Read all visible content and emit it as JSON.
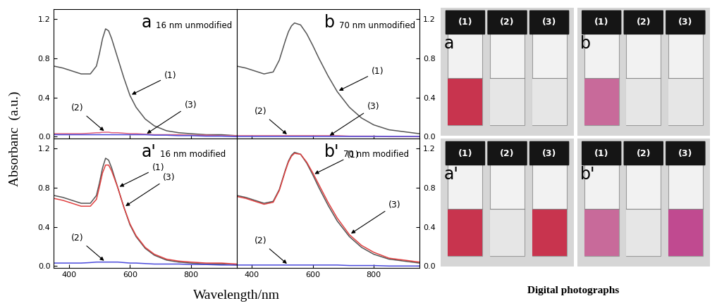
{
  "chart_data": [
    {
      "type": "line",
      "title": "a",
      "subtitle": "16 nm unmodified",
      "xlim": [
        350,
        950
      ],
      "xticks": [
        400,
        600,
        800
      ],
      "ylim": [
        -0.02,
        1.3
      ],
      "yticks": [
        {
          "value": 0.0,
          "label": "0.0"
        },
        {
          "value": 0.4,
          "label": "0.4"
        },
        {
          "value": 0.8,
          "label": "0.8"
        },
        {
          "value": 1.2,
          "label": "1.2"
        }
      ],
      "x": [
        350,
        380,
        410,
        440,
        470,
        490,
        500,
        510,
        520,
        530,
        540,
        560,
        580,
        600,
        620,
        650,
        680,
        720,
        760,
        800,
        850,
        900,
        950
      ],
      "series": [
        {
          "name": "(1)",
          "color": "#555555",
          "label_x": 600,
          "values": [
            0.72,
            0.7,
            0.67,
            0.64,
            0.64,
            0.72,
            0.85,
            1.0,
            1.1,
            1.08,
            1.0,
            0.8,
            0.6,
            0.42,
            0.3,
            0.18,
            0.11,
            0.06,
            0.04,
            0.03,
            0.02,
            0.02,
            0.01
          ]
        },
        {
          "name": "(2)",
          "color": "#e0607a",
          "label_x": 520,
          "values": [
            0.03,
            0.03,
            0.03,
            0.03,
            0.035,
            0.04,
            0.04,
            0.045,
            0.045,
            0.045,
            0.04,
            0.04,
            0.035,
            0.03,
            0.03,
            0.025,
            0.02,
            0.02,
            0.02,
            0.015,
            0.015,
            0.01,
            0.01
          ]
        },
        {
          "name": "(3)",
          "color": "#4a4adc",
          "label_x": 650,
          "values": [
            0.02,
            0.02,
            0.02,
            0.02,
            0.02,
            0.02,
            0.02,
            0.02,
            0.02,
            0.02,
            0.02,
            0.02,
            0.02,
            0.02,
            0.02,
            0.02,
            0.015,
            0.015,
            0.01,
            0.01,
            0.005,
            0.005,
            0.0
          ]
        }
      ]
    },
    {
      "type": "line",
      "title": "b",
      "subtitle": "70 nm unmodified",
      "xlim": [
        350,
        950
      ],
      "xticks": [
        400,
        600,
        800
      ],
      "ylim": [
        -0.02,
        1.3
      ],
      "yticks": [
        {
          "value": 0.0,
          "label": "0.0"
        },
        {
          "value": 0.4,
          "label": "0.4"
        },
        {
          "value": 0.8,
          "label": "0.8"
        },
        {
          "value": 1.2,
          "label": "1.2"
        }
      ],
      "x": [
        350,
        380,
        410,
        440,
        470,
        490,
        500,
        510,
        520,
        530,
        540,
        560,
        580,
        600,
        620,
        650,
        680,
        720,
        760,
        800,
        850,
        900,
        950
      ],
      "series": [
        {
          "name": "(1)",
          "color": "#555555",
          "label_x": 680,
          "values": [
            0.72,
            0.7,
            0.67,
            0.64,
            0.66,
            0.78,
            0.88,
            0.98,
            1.07,
            1.13,
            1.16,
            1.14,
            1.05,
            0.93,
            0.8,
            0.62,
            0.46,
            0.3,
            0.19,
            0.12,
            0.07,
            0.05,
            0.03
          ]
        },
        {
          "name": "(2)",
          "color": "#e0607a",
          "label_x": 520,
          "values": [
            0.01,
            0.01,
            0.01,
            0.01,
            0.01,
            0.01,
            0.01,
            0.01,
            0.01,
            0.01,
            0.01,
            0.01,
            0.01,
            0.01,
            0.01,
            0.01,
            0.01,
            0.005,
            0.005,
            0.005,
            0.0,
            0.0,
            0.0
          ]
        },
        {
          "name": "(3)",
          "color": "#4a4adc",
          "label_x": 650,
          "values": [
            0.0,
            0.0,
            0.0,
            0.0,
            0.0,
            0.0,
            0.0,
            0.0,
            0.0,
            0.0,
            0.0,
            0.0,
            0.0,
            0.0,
            0.0,
            0.0,
            0.0,
            0.0,
            0.0,
            0.0,
            0.0,
            0.0,
            0.0
          ]
        }
      ]
    },
    {
      "type": "line",
      "title": "a'",
      "subtitle": "16 nm modified",
      "xlim": [
        350,
        950
      ],
      "xticks": [
        400,
        600,
        800
      ],
      "ylim": [
        -0.02,
        1.3
      ],
      "yticks": [
        {
          "value": 0.0,
          "label": "0.0"
        },
        {
          "value": 0.4,
          "label": "0.4"
        },
        {
          "value": 0.8,
          "label": "0.8"
        },
        {
          "value": 1.2,
          "label": "1.2"
        }
      ],
      "x": [
        350,
        380,
        410,
        440,
        470,
        490,
        500,
        510,
        520,
        530,
        540,
        560,
        580,
        600,
        620,
        650,
        680,
        720,
        760,
        800,
        850,
        900,
        950
      ],
      "series": [
        {
          "name": "(1)",
          "color": "#555555",
          "label_x": 560,
          "values": [
            0.72,
            0.7,
            0.67,
            0.64,
            0.64,
            0.72,
            0.85,
            1.0,
            1.1,
            1.08,
            1.0,
            0.8,
            0.6,
            0.42,
            0.3,
            0.18,
            0.11,
            0.06,
            0.04,
            0.03,
            0.02,
            0.02,
            0.01
          ]
        },
        {
          "name": "(2)",
          "color": "#4a4adc",
          "label_x": 520,
          "values": [
            0.03,
            0.03,
            0.03,
            0.03,
            0.035,
            0.04,
            0.04,
            0.04,
            0.04,
            0.04,
            0.04,
            0.04,
            0.035,
            0.03,
            0.03,
            0.025,
            0.02,
            0.02,
            0.02,
            0.015,
            0.015,
            0.01,
            0.01
          ]
        },
        {
          "name": "(3)",
          "color": "#e04040",
          "label_x": 580,
          "values": [
            0.69,
            0.67,
            0.64,
            0.61,
            0.61,
            0.68,
            0.81,
            0.95,
            1.03,
            1.03,
            0.97,
            0.8,
            0.6,
            0.43,
            0.31,
            0.19,
            0.12,
            0.07,
            0.05,
            0.04,
            0.03,
            0.03,
            0.02
          ]
        }
      ]
    },
    {
      "type": "line",
      "title": "b'",
      "subtitle": "70 nm modified",
      "xlim": [
        350,
        950
      ],
      "xticks": [
        400,
        600,
        800
      ],
      "ylim": [
        -0.02,
        1.3
      ],
      "yticks": [
        {
          "value": 0.0,
          "label": "0.0"
        },
        {
          "value": 0.4,
          "label": "0.4"
        },
        {
          "value": 0.8,
          "label": "0.8"
        },
        {
          "value": 1.2,
          "label": "1.2"
        }
      ],
      "x": [
        350,
        380,
        410,
        440,
        470,
        490,
        500,
        510,
        520,
        530,
        540,
        560,
        580,
        600,
        620,
        650,
        680,
        720,
        760,
        800,
        850,
        900,
        950
      ],
      "series": [
        {
          "name": "(1)",
          "color": "#555555",
          "label_x": 600,
          "values": [
            0.72,
            0.7,
            0.67,
            0.64,
            0.66,
            0.78,
            0.88,
            0.98,
            1.07,
            1.13,
            1.16,
            1.14,
            1.05,
            0.93,
            0.8,
            0.62,
            0.46,
            0.3,
            0.19,
            0.12,
            0.07,
            0.05,
            0.03
          ]
        },
        {
          "name": "(2)",
          "color": "#4a4adc",
          "label_x": 520,
          "values": [
            0.01,
            0.01,
            0.01,
            0.01,
            0.01,
            0.01,
            0.01,
            0.01,
            0.01,
            0.01,
            0.01,
            0.01,
            0.01,
            0.01,
            0.01,
            0.01,
            0.01,
            0.005,
            0.005,
            0.005,
            0.0,
            0.0,
            0.0
          ]
        },
        {
          "name": "(3)",
          "color": "#e04040",
          "label_x": 720,
          "values": [
            0.71,
            0.69,
            0.66,
            0.63,
            0.65,
            0.77,
            0.87,
            0.97,
            1.06,
            1.12,
            1.15,
            1.14,
            1.06,
            0.95,
            0.83,
            0.65,
            0.49,
            0.32,
            0.21,
            0.14,
            0.08,
            0.06,
            0.04
          ]
        }
      ]
    }
  ],
  "axis_labels": {
    "x": "Wavelength/nm",
    "y": "Absorbanc  (a.u.)"
  },
  "photographs": {
    "title": "Digital photographs",
    "panels": [
      {
        "label": "a",
        "vials": [
          {
            "label": "(1)",
            "color": "#c8344e"
          },
          {
            "label": "(2)",
            "color": null
          },
          {
            "label": "(3)",
            "color": null
          }
        ]
      },
      {
        "label": "b",
        "vials": [
          {
            "label": "(1)",
            "color": "#c86a9a"
          },
          {
            "label": "(2)",
            "color": null
          },
          {
            "label": "(3)",
            "color": null
          }
        ]
      },
      {
        "label": "a'",
        "vials": [
          {
            "label": "(1)",
            "color": "#c8344e"
          },
          {
            "label": "(2)",
            "color": null
          },
          {
            "label": "(3)",
            "color": "#c8344e"
          }
        ]
      },
      {
        "label": "b'",
        "vials": [
          {
            "label": "(1)",
            "color": "#c86a9a"
          },
          {
            "label": "(2)",
            "color": null
          },
          {
            "label": "(3)",
            "color": "#c04a90"
          }
        ]
      }
    ]
  }
}
